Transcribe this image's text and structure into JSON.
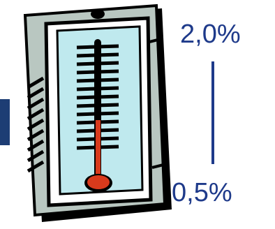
{
  "thermometer": {
    "icon": "thermometer-icon",
    "mercury_color": "#d93a1c",
    "frame_color": "#b9c7c1",
    "face_color": "#bfe9ee"
  },
  "scale": {
    "top_label": "2,0%",
    "bottom_label": "0,5%",
    "text_color": "#1e3a8a"
  },
  "accent": {
    "left_bar_color": "#1d3d74"
  }
}
